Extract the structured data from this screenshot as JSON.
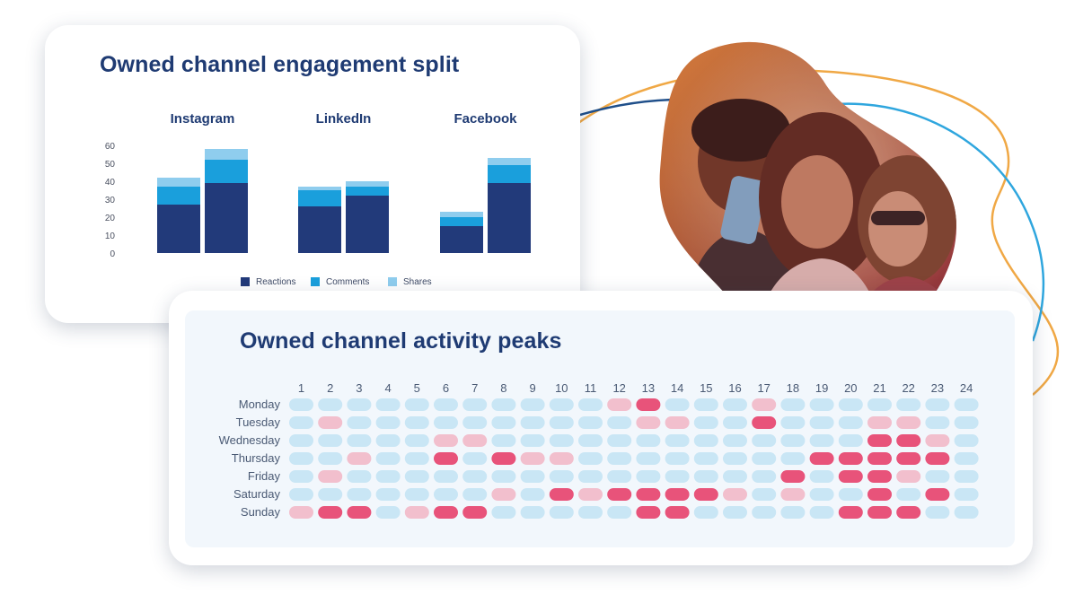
{
  "engagement": {
    "title": "Owned channel engagement split",
    "chart_data": {
      "type": "bar",
      "stacked": true,
      "groups": [
        "Instagram",
        "LinkedIn",
        "Facebook"
      ],
      "bars_per_group": 2,
      "series": [
        {
          "name": "Reactions",
          "color": "#223a7a",
          "values": [
            [
              27,
              39
            ],
            [
              26,
              32
            ],
            [
              15,
              39
            ]
          ]
        },
        {
          "name": "Comments",
          "color": "#1a9fdc",
          "values": [
            [
              10,
              13
            ],
            [
              9,
              5
            ],
            [
              5,
              10
            ]
          ]
        },
        {
          "name": "Shares",
          "color": "#8fcdee",
          "values": [
            [
              5,
              6
            ],
            [
              2,
              3
            ],
            [
              3,
              4
            ]
          ]
        }
      ],
      "y_ticks": [
        0,
        10,
        20,
        30,
        40,
        50,
        60
      ],
      "ylim": [
        0,
        60
      ],
      "legend_position": "bottom",
      "grid": false
    }
  },
  "peaks": {
    "title": "Owned channel activity peaks",
    "chart_data": {
      "type": "heatmap",
      "columns": [
        "1",
        "2",
        "3",
        "4",
        "5",
        "6",
        "7",
        "8",
        "9",
        "10",
        "11",
        "12",
        "13",
        "14",
        "15",
        "16",
        "17",
        "18",
        "19",
        "20",
        "21",
        "22",
        "23",
        "24"
      ],
      "rows": [
        "Monday",
        "Tuesday",
        "Wednesday",
        "Thursday",
        "Friday",
        "Saturday",
        "Sunday"
      ],
      "levels": [
        [
          0,
          0,
          0,
          0,
          0,
          0,
          0,
          0,
          0,
          0,
          0,
          1,
          2,
          0,
          0,
          0,
          1,
          0,
          0,
          0,
          0,
          0,
          0,
          0
        ],
        [
          0,
          1,
          0,
          0,
          0,
          0,
          0,
          0,
          0,
          0,
          0,
          0,
          1,
          1,
          0,
          0,
          2,
          0,
          0,
          0,
          1,
          1,
          0,
          0
        ],
        [
          0,
          0,
          0,
          0,
          0,
          1,
          1,
          0,
          0,
          0,
          0,
          0,
          0,
          0,
          0,
          0,
          0,
          0,
          0,
          0,
          2,
          2,
          1,
          0
        ],
        [
          0,
          0,
          1,
          0,
          0,
          2,
          0,
          2,
          1,
          1,
          0,
          0,
          0,
          0,
          0,
          0,
          0,
          0,
          2,
          2,
          2,
          2,
          2,
          0
        ],
        [
          0,
          1,
          0,
          0,
          0,
          0,
          0,
          0,
          0,
          0,
          0,
          0,
          0,
          0,
          0,
          0,
          0,
          2,
          0,
          2,
          2,
          1,
          0,
          0
        ],
        [
          0,
          0,
          0,
          0,
          0,
          0,
          0,
          1,
          0,
          2,
          1,
          2,
          2,
          2,
          2,
          1,
          0,
          1,
          0,
          0,
          2,
          0,
          2,
          0
        ],
        [
          1,
          2,
          2,
          0,
          1,
          2,
          2,
          0,
          0,
          0,
          0,
          0,
          2,
          2,
          0,
          0,
          0,
          0,
          0,
          2,
          2,
          2,
          0,
          0
        ]
      ],
      "level_colors": [
        "#c9e6f5",
        "#f2bfcd",
        "#e8537a"
      ]
    }
  },
  "decoration": {
    "photo": "group-selfie-photo",
    "line_colors": [
      "#f0a845",
      "#2fa6de",
      "#1f4f8a"
    ]
  }
}
